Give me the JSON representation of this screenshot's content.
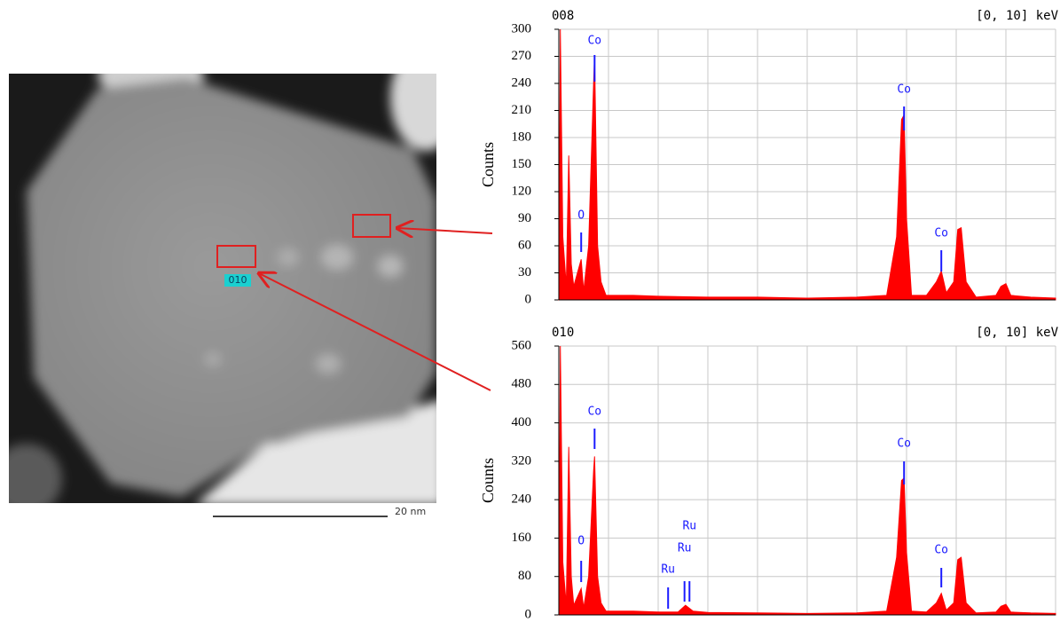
{
  "image": {
    "scale_bar": "20 nm",
    "region_label": "010"
  },
  "chart_data": [
    {
      "type": "area",
      "title": "008",
      "range_label": "[0, 10] keV",
      "ylabel": "Counts",
      "color": "#ff0000",
      "x": [
        0,
        0.03,
        0.08,
        0.15,
        0.2,
        0.25,
        0.3,
        0.45,
        0.5,
        0.6,
        0.7,
        0.72,
        0.78,
        0.85,
        0.95,
        1.5,
        2,
        3,
        4,
        5,
        6,
        6.6,
        6.8,
        6.9,
        6.95,
        7.0,
        7.1,
        7.4,
        7.6,
        7.7,
        7.8,
        7.95,
        8.03,
        8.1,
        8.2,
        8.4,
        8.8,
        8.9,
        9.0,
        9.1,
        9.5,
        10
      ],
      "values": [
        0,
        300,
        70,
        15,
        160,
        40,
        15,
        45,
        10,
        60,
        240,
        270,
        60,
        20,
        5,
        5,
        4,
        3,
        3,
        2,
        3,
        5,
        70,
        200,
        205,
        90,
        5,
        5,
        20,
        32,
        8,
        20,
        78,
        80,
        20,
        3,
        5,
        15,
        18,
        5,
        3,
        2
      ],
      "xlim": [
        0,
        10
      ],
      "ylim": [
        0,
        300
      ],
      "xticks": [
        0,
        1,
        2,
        3,
        4,
        5,
        6,
        7,
        8,
        9,
        10
      ],
      "yticks": [
        0,
        30,
        60,
        90,
        120,
        150,
        180,
        210,
        240,
        270,
        300
      ],
      "grid": true,
      "annotations": [
        {
          "label": "Co",
          "x": 0.72
        },
        {
          "label": "O",
          "x": 0.45
        },
        {
          "label": "Co",
          "x": 6.95
        },
        {
          "label": "Co",
          "x": 7.7
        }
      ]
    },
    {
      "type": "area",
      "title": "010",
      "range_label": "[0, 10] keV",
      "ylabel": "Counts",
      "color": "#ff0000",
      "x": [
        0,
        0.03,
        0.08,
        0.15,
        0.2,
        0.25,
        0.3,
        0.45,
        0.5,
        0.6,
        0.7,
        0.72,
        0.78,
        0.85,
        0.95,
        1.5,
        2,
        2.4,
        2.55,
        2.7,
        3,
        4,
        5,
        6,
        6.6,
        6.8,
        6.9,
        6.95,
        7.0,
        7.1,
        7.4,
        7.6,
        7.7,
        7.8,
        7.95,
        8.03,
        8.1,
        8.2,
        8.4,
        8.8,
        8.9,
        9.0,
        9.1,
        9.5,
        10
      ],
      "values": [
        0,
        560,
        110,
        20,
        350,
        80,
        20,
        55,
        15,
        80,
        300,
        330,
        80,
        25,
        8,
        8,
        6,
        6,
        20,
        8,
        5,
        4,
        3,
        4,
        8,
        120,
        280,
        285,
        130,
        8,
        6,
        25,
        45,
        10,
        25,
        115,
        120,
        25,
        4,
        6,
        18,
        22,
        6,
        4,
        3
      ],
      "xlim": [
        0,
        10
      ],
      "ylim": [
        0,
        560
      ],
      "xticks": [
        0,
        1,
        2,
        3,
        4,
        5,
        6,
        7,
        8,
        9,
        10
      ],
      "yticks": [
        0,
        80,
        160,
        240,
        320,
        400,
        480,
        560
      ],
      "grid": true,
      "annotations": [
        {
          "label": "Co",
          "x": 0.72
        },
        {
          "label": "O",
          "x": 0.45
        },
        {
          "label": "Ru",
          "x": 2.2
        },
        {
          "label": "Ru",
          "x": 2.53
        },
        {
          "label": "Ru",
          "x": 2.63
        },
        {
          "label": "Co",
          "x": 6.95
        },
        {
          "label": "Co",
          "x": 7.7
        }
      ]
    }
  ]
}
